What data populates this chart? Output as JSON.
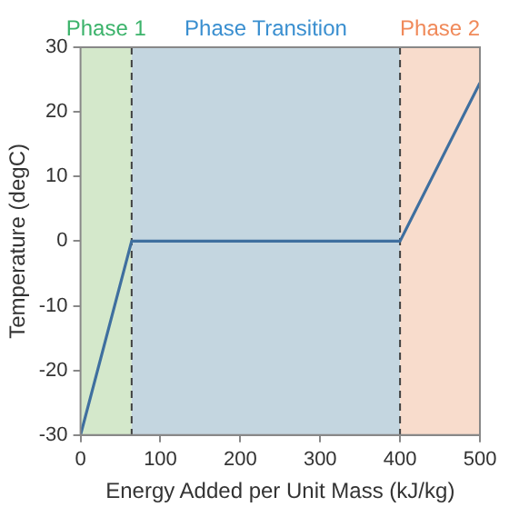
{
  "chart_data": {
    "type": "line",
    "xlabel": "Energy Added per Unit Mass (kJ/kg)",
    "ylabel": "Temperature (degC)",
    "x": [
      0,
      64,
      400,
      500
    ],
    "series": [
      {
        "color": "#3f6f9f",
        "values": [
          -30,
          0,
          0,
          24.5
        ]
      }
    ],
    "xlim": [
      0,
      500
    ],
    "xticks": [
      0,
      100,
      200,
      300,
      400,
      500
    ],
    "ylim": [
      -30,
      30
    ],
    "yticks": [
      -30,
      -20,
      -10,
      0,
      10,
      20,
      30
    ],
    "grid": false,
    "legend": false,
    "marker": "none",
    "line_style": "solid",
    "bands": [
      {
        "axis": "x",
        "from": 0,
        "to": 64,
        "label": "Phase 1",
        "color": "#d4e8cb"
      },
      {
        "axis": "x",
        "from": 64,
        "to": 400,
        "label": "Phase Transition",
        "color": "#c4d6e0"
      },
      {
        "axis": "x",
        "from": 400,
        "to": 500,
        "label": "Phase 2",
        "color": "#f8dccc"
      }
    ],
    "ref_lines": [
      {
        "axis": "x",
        "value": 64,
        "color": "#404040",
        "line_style": "dashed"
      },
      {
        "axis": "x",
        "value": 400,
        "color": "#404040",
        "line_style": "dashed"
      }
    ]
  }
}
